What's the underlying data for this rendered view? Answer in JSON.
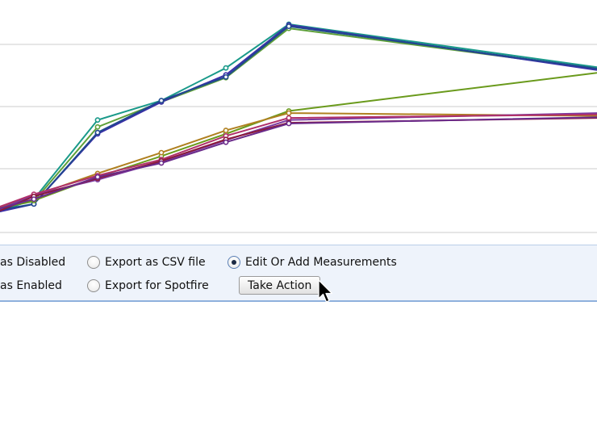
{
  "chart_data": {
    "type": "line",
    "x": [
      0,
      1,
      2,
      3,
      4,
      5,
      6,
      7,
      8,
      9,
      10,
      11,
      12,
      13
    ],
    "grid": true,
    "series": [
      {
        "color": "#1a9a8a",
        "values": [
          null,
          48,
          162,
          190,
          237,
          300,
          null,
          null,
          null,
          null,
          null,
          null,
          null,
          238
        ]
      },
      {
        "color": "#5ea03a",
        "values": [
          null,
          45,
          152,
          188,
          223,
          294,
          null,
          null,
          null,
          null,
          null,
          null,
          null,
          236
        ]
      },
      {
        "color": "#3a2fa8",
        "values": [
          null,
          41,
          142,
          188,
          227,
          299,
          null,
          null,
          null,
          null,
          null,
          null,
          null,
          234
        ]
      },
      {
        "color": "#20488e",
        "values": [
          null,
          41,
          144,
          190,
          224,
          297,
          null,
          null,
          null,
          null,
          null,
          null,
          null,
          236
        ]
      },
      {
        "color": "#6a9a1c",
        "values": [
          null,
          46,
          80,
          110,
          142,
          175,
          null,
          null,
          null,
          null,
          null,
          null,
          null,
          230
        ]
      },
      {
        "color": "#b08020",
        "values": [
          null,
          53,
          85,
          115,
          147,
          172,
          null,
          null,
          null,
          null,
          null,
          null,
          null,
          168
        ]
      },
      {
        "color": "#7a3aa0",
        "values": [
          null,
          54,
          76,
          102,
          133,
          162,
          null,
          null,
          null,
          null,
          null,
          null,
          null,
          172
        ]
      },
      {
        "color": "#b0306a",
        "values": [
          null,
          55,
          82,
          105,
          139,
          165,
          null,
          null,
          null,
          null,
          null,
          null,
          null,
          170
        ]
      },
      {
        "color": "#8a1a3a",
        "values": [
          null,
          52,
          78,
          103,
          134,
          158,
          null,
          null,
          null,
          null,
          null,
          null,
          null,
          165
        ]
      },
      {
        "color": "#6a2a8a",
        "values": [
          null,
          48,
          80,
          100,
          130,
          157,
          null,
          null,
          null,
          null,
          null,
          null,
          null,
          166
        ]
      }
    ]
  },
  "actions": {
    "mark_disabled_label": "as Disabled",
    "mark_enabled_label": "as Enabled",
    "export_csv_label": "Export as CSV file",
    "export_spotfire_label": "Export for Spotfire",
    "edit_measurements_label": "Edit Or Add Measurements",
    "selected_option": "Edit Or Add Measurements",
    "take_action_label": "Take Action"
  }
}
